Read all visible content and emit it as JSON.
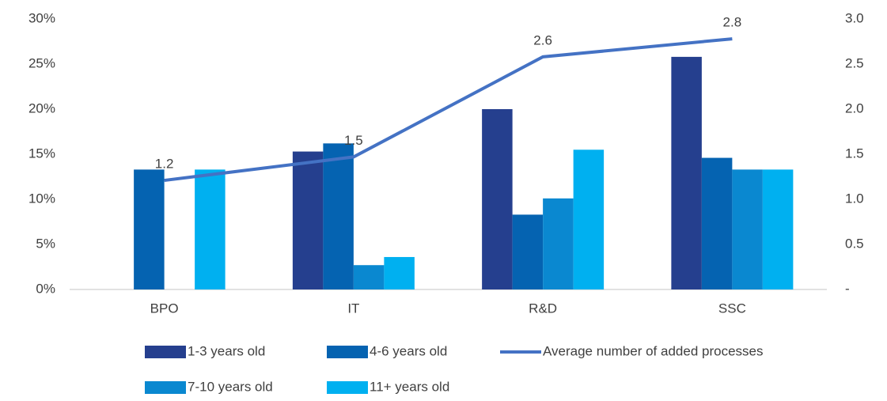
{
  "chart_data": {
    "type": "bar_line",
    "categories": [
      "BPO",
      "IT",
      "R&D",
      "SSC"
    ],
    "series": [
      {
        "name": "1-3 years old",
        "color": "#253f8e",
        "values": [
          null,
          15.3,
          20.0,
          25.8
        ]
      },
      {
        "name": "4-6 years old",
        "color": "#0563b1",
        "values": [
          13.3,
          16.2,
          8.3,
          14.6
        ]
      },
      {
        "name": "7-10 years old",
        "color": "#0a88d0",
        "values": [
          null,
          2.7,
          10.1,
          13.3
        ]
      },
      {
        "name": "11+ years old",
        "color": "#00b0f0",
        "values": [
          13.3,
          3.6,
          15.5,
          13.3
        ]
      },
      {
        "name": "Average number of added processes",
        "color": "#4472c4",
        "type": "line",
        "axis": "y2",
        "values": [
          1.21,
          1.47,
          2.58,
          2.78
        ],
        "value_labels": [
          "1.2",
          "1.5",
          "2.6",
          "2.8"
        ]
      }
    ],
    "ylim": [
      0,
      30
    ],
    "yticks": [
      {
        "value": 0,
        "label": "0%"
      },
      {
        "value": 5,
        "label": "5%"
      },
      {
        "value": 10,
        "label": "10%"
      },
      {
        "value": 15,
        "label": "15%"
      },
      {
        "value": 20,
        "label": "20%"
      },
      {
        "value": 25,
        "label": "25%"
      },
      {
        "value": 30,
        "label": "30%"
      }
    ],
    "y2lim": [
      0,
      3
    ],
    "y2ticks": [
      {
        "value": 0,
        "label": "-"
      },
      0.5,
      {
        "value": 1,
        "label": "1.0"
      },
      1.5,
      {
        "value": 2,
        "label": "2.0"
      },
      2.5,
      {
        "value": 3,
        "label": "3.0"
      }
    ],
    "grid": false
  }
}
